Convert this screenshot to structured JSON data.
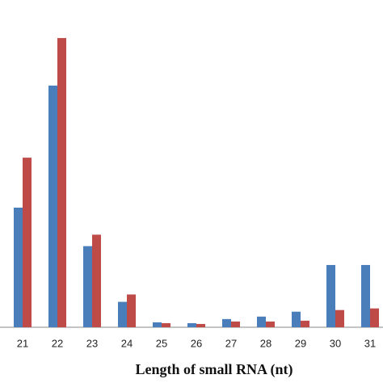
{
  "chart_data": {
    "type": "bar",
    "x_label": "Length of small RNA (nt)",
    "categories": [
      "21",
      "22",
      "23",
      "24",
      "25",
      "26",
      "27",
      "28",
      "29",
      "30",
      "31"
    ],
    "series": [
      {
        "color": "#4a7ebb",
        "values": [
          146,
          295,
          99,
          31,
          6,
          5,
          10,
          13,
          19,
          76,
          76
        ]
      },
      {
        "color": "#be4b48",
        "values": [
          207,
          353,
          113,
          40,
          5,
          4,
          7,
          7,
          8,
          21,
          23
        ]
      }
    ],
    "ylim": [
      0,
      360
    ]
  }
}
